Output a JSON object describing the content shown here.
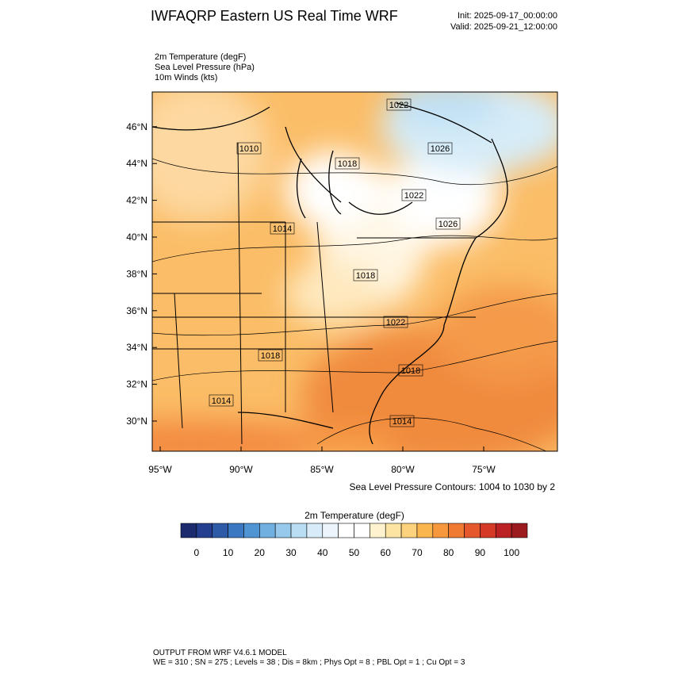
{
  "header": {
    "title": "IWFAQRP Eastern US Real Time WRF",
    "init": "Init: 2025-09-17_00:00:00",
    "valid": "Valid: 2025-09-21_12:00:00"
  },
  "fields": [
    "2m Temperature   (degF)",
    "Sea Level Pressure   (hPa)",
    "10m Winds   (kts)"
  ],
  "map": {
    "lat_labels": [
      "30°N",
      "32°N",
      "34°N",
      "36°N",
      "38°N",
      "40°N",
      "42°N",
      "44°N",
      "46°N"
    ],
    "lon_labels": [
      "95°W",
      "90°W",
      "85°W",
      "80°W",
      "75°W"
    ],
    "contour_labels": [
      "1022",
      "1026",
      "1010",
      "1018",
      "1022",
      "1026",
      "1014",
      "1018",
      "1022",
      "1018",
      "1018",
      "1014",
      "1014"
    ],
    "contour_note": "Sea Level Pressure Contours: 1004 to 1030 by 2"
  },
  "colorbar": {
    "title": "2m Temperature  (degF)",
    "colors": [
      "#1b2b6e",
      "#243f8f",
      "#2d5ba8",
      "#3b78c2",
      "#4f95d3",
      "#6fb0e0",
      "#96c9ec",
      "#b9ddf3",
      "#d7ecf8",
      "#ebf5fb",
      "#ffffff",
      "#ffffff",
      "#fff3cf",
      "#fee4a3",
      "#fdd27c",
      "#fbb54f",
      "#f7983d",
      "#f07a32",
      "#e5582b",
      "#d43a26",
      "#bb2223",
      "#9c1b1f"
    ],
    "labels": [
      0,
      10,
      20,
      30,
      40,
      50,
      60,
      70,
      80,
      90,
      100
    ]
  },
  "footer": {
    "line1": "OUTPUT FROM WRF V4.6.1 MODEL",
    "line2": "WE = 310 ; SN = 275 ; Levels = 38 ; Dis = 8km ; Phys Opt = 8 ; PBL Opt = 1 ; Cu Opt = 3"
  }
}
